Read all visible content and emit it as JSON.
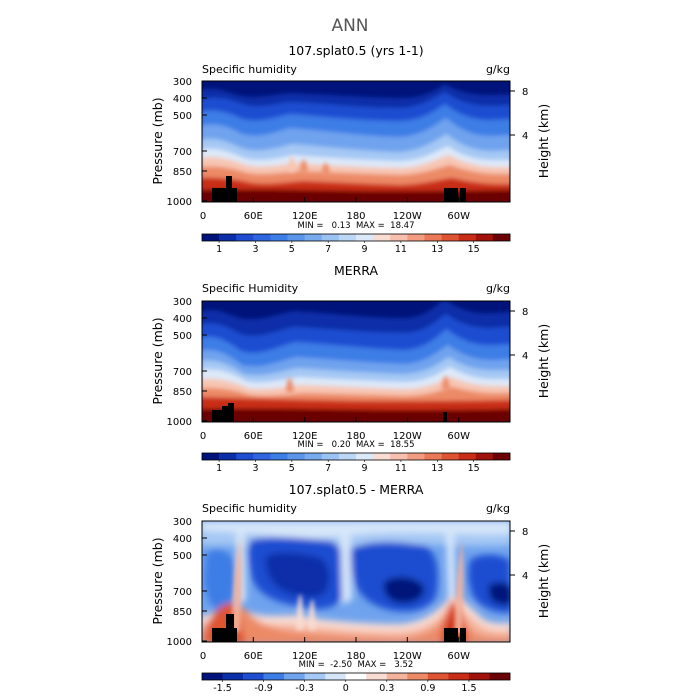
{
  "figure_title": "ANN",
  "chart_data": [
    {
      "type": "heatmap",
      "title": "107.splat0.5 (yrs 1-1)",
      "left_label": "Specific humidity",
      "units": "g/kg",
      "ylabel": "Pressure (mb)",
      "ylabel_right": "Height (km)",
      "x_ticks": [
        "0",
        "60E",
        "120E",
        "180",
        "120W",
        "60W"
      ],
      "y_ticks": [
        "300",
        "400",
        "500",
        "700",
        "850",
        "1000"
      ],
      "y_ticks_right": [
        "8",
        "4"
      ],
      "stats": "MIN =   0.13  MAX =  18.47",
      "colorbar": {
        "labels": [
          "1",
          "3",
          "5",
          "7",
          "9",
          "11",
          "13",
          "15"
        ],
        "colors": [
          "#00137a",
          "#0a2fa8",
          "#1f4dd1",
          "#2f66e0",
          "#3d7de6",
          "#5a95ea",
          "#78abee",
          "#9ac2f2",
          "#bcd7f6",
          "#dce9f9",
          "#f9dcd2",
          "#f7bfae",
          "#f29d82",
          "#ea7a57",
          "#de5433",
          "#c92d17",
          "#a1120b",
          "#6b0205"
        ]
      }
    },
    {
      "type": "heatmap",
      "title": "MERRA",
      "left_label": "Specific Humidity",
      "units": "g/kg",
      "ylabel": "Pressure (mb)",
      "ylabel_right": "Height (km)",
      "x_ticks": [
        "0",
        "60E",
        "120E",
        "180",
        "120W",
        "60W"
      ],
      "y_ticks": [
        "300",
        "400",
        "500",
        "700",
        "850",
        "1000"
      ],
      "y_ticks_right": [
        "8",
        "4"
      ],
      "stats": "MIN =   0.20  MAX =  18.55",
      "colorbar": {
        "labels": [
          "1",
          "3",
          "5",
          "7",
          "9",
          "11",
          "13",
          "15"
        ],
        "colors": [
          "#00137a",
          "#0a2fa8",
          "#1f4dd1",
          "#2f66e0",
          "#3d7de6",
          "#5a95ea",
          "#78abee",
          "#9ac2f2",
          "#bcd7f6",
          "#dce9f9",
          "#f9dcd2",
          "#f7bfae",
          "#f29d82",
          "#ea7a57",
          "#de5433",
          "#c92d17",
          "#a1120b",
          "#6b0205"
        ]
      }
    },
    {
      "type": "heatmap",
      "title": "107.splat0.5 - MERRA",
      "left_label": "Specific humidity",
      "units": "g/kg",
      "ylabel": "Pressure (mb)",
      "ylabel_right": "Height (km)",
      "x_ticks": [
        "0",
        "60E",
        "120E",
        "180",
        "120W",
        "60W"
      ],
      "y_ticks": [
        "300",
        "400",
        "500",
        "700",
        "850",
        "1000"
      ],
      "y_ticks_right": [
        "8",
        "4"
      ],
      "stats": "MIN =  -2.50  MAX =   3.52",
      "colorbar": {
        "labels": [
          "-1.5",
          "-0.9",
          "-0.3",
          "0",
          "0.3",
          "0.9",
          "1.5"
        ],
        "colors": [
          "#00137a",
          "#0a2fa8",
          "#1f4dd1",
          "#3d7de6",
          "#6fa3ee",
          "#a5c8f4",
          "#d6e6f9",
          "#ffffff",
          "#f9dcd2",
          "#f4b39c",
          "#ec8a66",
          "#de5433",
          "#c92d17",
          "#a1120b",
          "#6b0205"
        ]
      }
    }
  ]
}
